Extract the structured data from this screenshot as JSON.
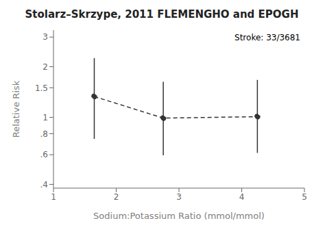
{
  "chart_data": {
    "type": "line",
    "title": "Stolarz–Skrzype, 2011 FLEMENGHO and EPOGH",
    "annotation": "Stroke: 33/3681",
    "xlabel": "Sodium:Potassium Ratio (mmol/mmol)",
    "ylabel": "Relative Risk",
    "x": [
      1.65,
      2.75,
      4.25
    ],
    "values": [
      1.33,
      0.99,
      1.01
    ],
    "lower": [
      0.745,
      0.595,
      0.615
    ],
    "upper": [
      2.25,
      1.63,
      1.67
    ],
    "xlim": [
      1,
      5
    ],
    "xticks": [
      1,
      2,
      3,
      4,
      5
    ],
    "ylim": [
      0.38,
      3.3
    ],
    "yticks": [
      {
        "value": 0.4,
        "label": ".4"
      },
      {
        "value": 0.6,
        "label": ".6"
      },
      {
        "value": 0.8,
        "label": ".8"
      },
      1,
      1.5,
      2,
      3
    ],
    "log": "y",
    "grid": false,
    "color": "#333333",
    "line_style": "dashed",
    "marker": "circle"
  }
}
